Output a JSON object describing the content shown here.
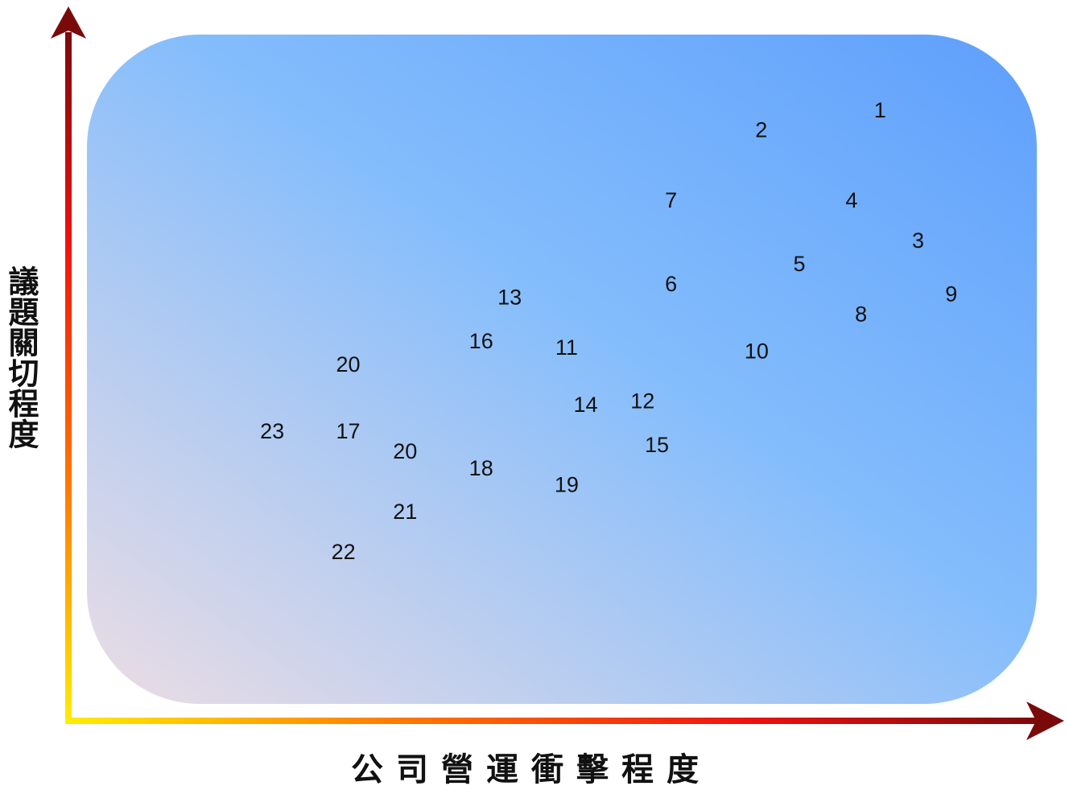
{
  "chart_data": {
    "type": "scatter",
    "title": "",
    "xlabel": "公司營運衝擊程度",
    "ylabel": "議題關切程度",
    "xlim": [
      0,
      100
    ],
    "ylim": [
      0,
      100
    ],
    "grid": false,
    "colors": {
      "axis_start": "#ffee00",
      "axis_mid": "#ff7700",
      "axis_red": "#ee1111",
      "axis_end": "#7a0a0a",
      "bg_top_right": "#5e9ffc",
      "bg_mid": "#84bdfc",
      "bg_bottom_left": "#ecdde4"
    },
    "points": [
      {
        "label": "1",
        "x": 83.5,
        "y": 88.5
      },
      {
        "label": "2",
        "x": 71.0,
        "y": 85.5
      },
      {
        "label": "3",
        "x": 87.5,
        "y": 69.0
      },
      {
        "label": "4",
        "x": 80.5,
        "y": 75.0
      },
      {
        "label": "5",
        "x": 75.0,
        "y": 65.5
      },
      {
        "label": "6",
        "x": 61.5,
        "y": 62.5
      },
      {
        "label": "7",
        "x": 61.5,
        "y": 75.0
      },
      {
        "label": "8",
        "x": 81.5,
        "y": 58.0
      },
      {
        "label": "9",
        "x": 91.0,
        "y": 61.0
      },
      {
        "label": "10",
        "x": 70.5,
        "y": 52.5
      },
      {
        "label": "11",
        "x": 50.5,
        "y": 53.0
      },
      {
        "label": "12",
        "x": 58.5,
        "y": 45.0
      },
      {
        "label": "13",
        "x": 44.5,
        "y": 60.5
      },
      {
        "label": "14",
        "x": 52.5,
        "y": 44.5
      },
      {
        "label": "15",
        "x": 60.0,
        "y": 38.5
      },
      {
        "label": "16",
        "x": 41.5,
        "y": 54.0
      },
      {
        "label": "17",
        "x": 27.5,
        "y": 40.5
      },
      {
        "label": "18",
        "x": 41.5,
        "y": 35.0
      },
      {
        "label": "19",
        "x": 50.5,
        "y": 32.5
      },
      {
        "label": "20",
        "x": 27.5,
        "y": 50.5
      },
      {
        "label": "20",
        "x": 33.5,
        "y": 37.5
      },
      {
        "label": "21",
        "x": 33.5,
        "y": 28.5
      },
      {
        "label": "22",
        "x": 27.0,
        "y": 22.5
      },
      {
        "label": "23",
        "x": 19.5,
        "y": 40.5
      }
    ]
  }
}
